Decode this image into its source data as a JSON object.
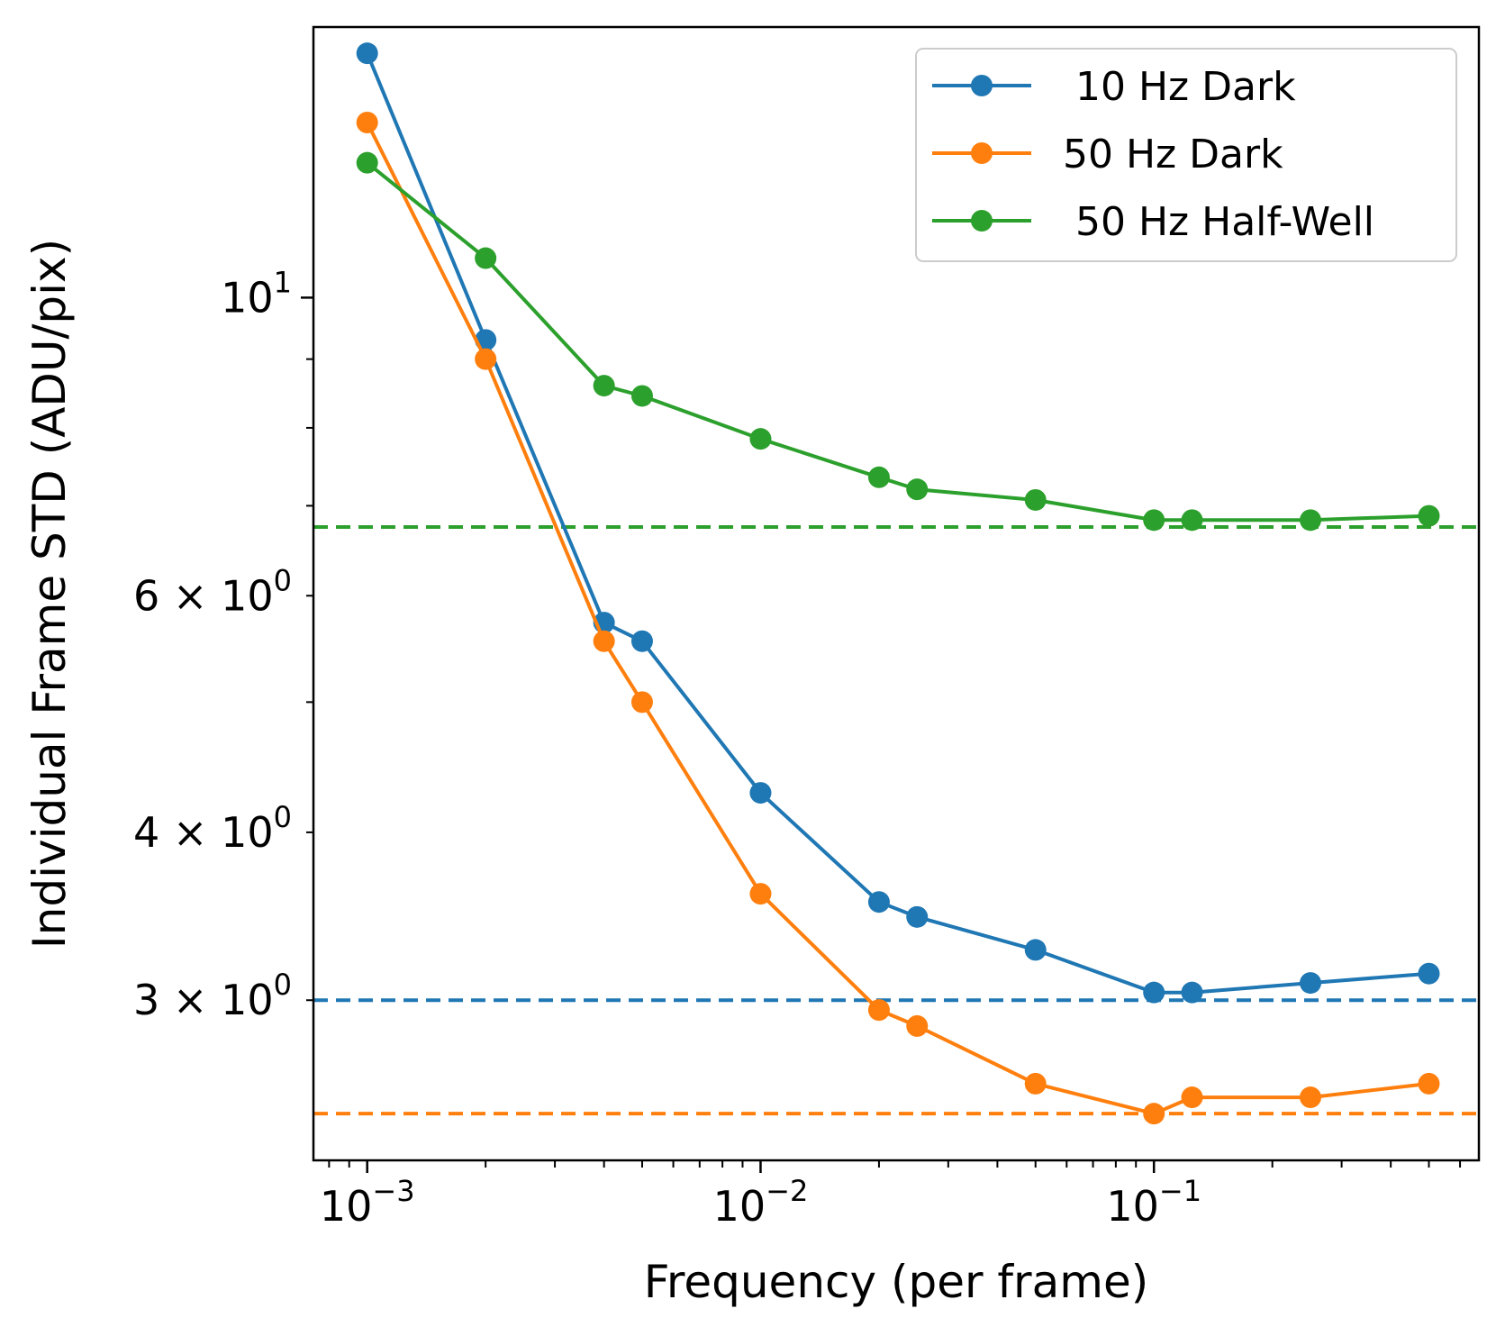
{
  "chart_data": {
    "type": "line",
    "title": "",
    "xlabel": "Frequency (per frame)",
    "ylabel": "Individual Frame STD (ADU/pix)",
    "xscale": "log",
    "yscale": "log",
    "xlim": [
      0.00073,
      0.67
    ],
    "ylim": [
      2.28,
      15.9
    ],
    "x_ticks": [
      {
        "value": 0.001,
        "base": "10",
        "exp": "−3"
      },
      {
        "value": 0.01,
        "base": "10",
        "exp": "−2"
      },
      {
        "value": 0.1,
        "base": "10",
        "exp": "−1"
      }
    ],
    "y_ticks": [
      {
        "value": 3,
        "mant": "3 × ",
        "base": "10",
        "exp": "0"
      },
      {
        "value": 4,
        "mant": "4 × ",
        "base": "10",
        "exp": "0"
      },
      {
        "value": 6,
        "mant": "6 × ",
        "base": "10",
        "exp": "0"
      },
      {
        "value": 10,
        "mant": "",
        "base": "10",
        "exp": "1"
      }
    ],
    "legend_position": "top-right",
    "series": [
      {
        "name": " 10 Hz Dark",
        "color": "#1f77b4",
        "x": [
          0.001,
          0.002,
          0.004,
          0.005,
          0.01,
          0.02,
          0.025,
          0.05,
          0.1,
          0.125,
          0.25,
          0.5
        ],
        "y": [
          15.2,
          9.3,
          5.73,
          5.55,
          4.28,
          3.55,
          3.46,
          3.27,
          3.04,
          3.04,
          3.09,
          3.14
        ],
        "reference_line": 3.0
      },
      {
        "name": "50 Hz Dark",
        "color": "#ff7f0e",
        "x": [
          0.001,
          0.002,
          0.004,
          0.005,
          0.01,
          0.02,
          0.025,
          0.05,
          0.1,
          0.125,
          0.25,
          0.5
        ],
        "y": [
          13.5,
          9.0,
          5.55,
          5.0,
          3.6,
          2.95,
          2.87,
          2.6,
          2.47,
          2.54,
          2.54,
          2.6
        ],
        "reference_line": 2.47
      },
      {
        "name": " 50 Hz Half-Well",
        "color": "#2ca02c",
        "x": [
          0.001,
          0.002,
          0.004,
          0.005,
          0.01,
          0.02,
          0.025,
          0.05,
          0.1,
          0.125,
          0.25,
          0.5
        ],
        "y": [
          12.6,
          10.7,
          8.6,
          8.45,
          7.85,
          7.35,
          7.2,
          7.07,
          6.83,
          6.83,
          6.83,
          6.88
        ],
        "reference_line": 6.75
      }
    ]
  }
}
